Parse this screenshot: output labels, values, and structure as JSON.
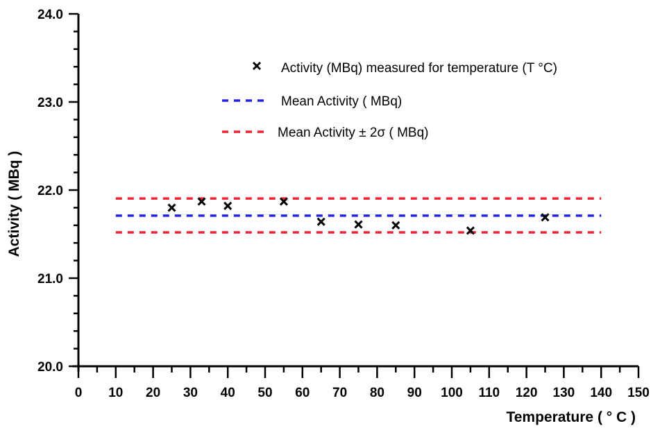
{
  "chart_data": {
    "type": "scatter",
    "title": "",
    "xlabel": "Temperature  ( ° C  )",
    "ylabel": "Activity ( MBq )",
    "xlim": [
      0,
      150
    ],
    "ylim": [
      20.0,
      24.0
    ],
    "xticks": [
      0,
      10,
      20,
      30,
      40,
      50,
      60,
      70,
      80,
      90,
      100,
      110,
      120,
      130,
      140,
      150
    ],
    "yticks": [
      "20.0",
      "21.0",
      "22.0",
      "23.0",
      "24.0"
    ],
    "grid": false,
    "legend_placement": "top-right",
    "series": [
      {
        "name": "Activity (MBq) measured for temperature (T °C)",
        "marker": "x",
        "color": "#000000",
        "x": [
          25,
          33,
          40,
          55,
          65,
          75,
          85,
          105,
          125
        ],
        "y": [
          21.8,
          21.87,
          21.82,
          21.87,
          21.64,
          21.61,
          21.6,
          21.54,
          21.69
        ]
      },
      {
        "name": "Mean Activity  ( MBq)",
        "style": "dashed",
        "color": "#2222ee",
        "x": [
          10,
          140
        ],
        "y": [
          21.71,
          21.71
        ]
      },
      {
        "name": "Mean Activity  ±  2σ ( MBq)",
        "style": "dashed",
        "color": "#ee2233",
        "x": [
          10,
          140
        ],
        "y_upper": [
          21.905,
          21.905
        ],
        "y_lower": [
          21.52,
          21.52
        ]
      }
    ]
  }
}
